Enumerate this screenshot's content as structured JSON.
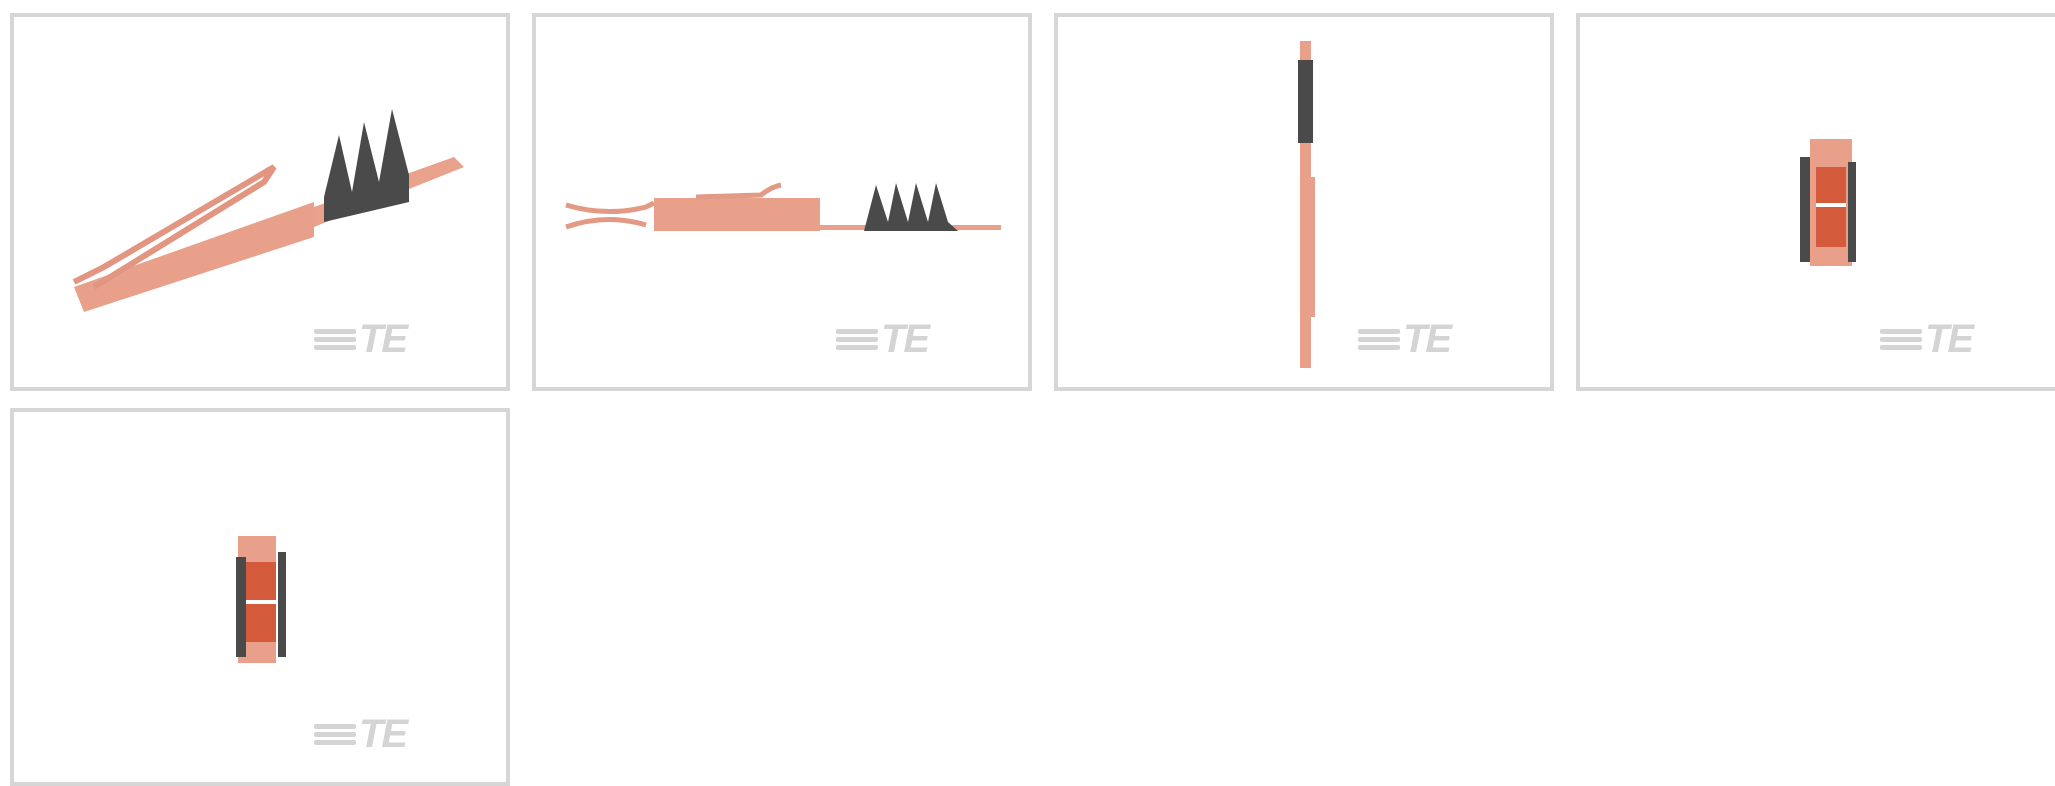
{
  "thumbnails": [
    {
      "logo": "TE"
    },
    {
      "logo": "TE"
    },
    {
      "logo": "TE"
    },
    {
      "logo": "TE"
    },
    {
      "logo": "TE"
    }
  ]
}
